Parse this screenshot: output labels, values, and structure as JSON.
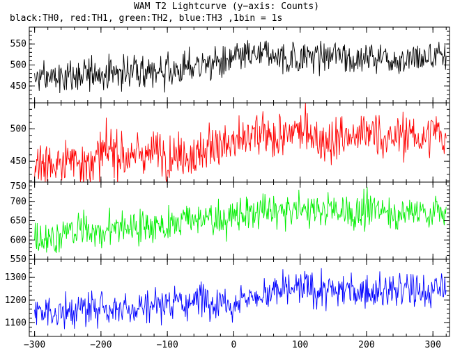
{
  "title": "WAM T2 Lightcurve (y−axis: Counts)",
  "subtitle": "black:TH0, red:TH1, green:TH2, blue:TH3 ,1bin = 1s",
  "chart_data": [
    {
      "type": "line",
      "series": [
        {
          "name": "TH0",
          "color": "#000000",
          "start": 465,
          "end": 520,
          "noise": 28
        }
      ],
      "xlim": [
        -308,
        325
      ],
      "ylim": [
        410,
        590
      ],
      "yticks": [
        450,
        500,
        550
      ],
      "x_range": [
        -300,
        320
      ],
      "bin_seconds": 1
    },
    {
      "type": "line",
      "series": [
        {
          "name": "TH1",
          "color": "#ff0000",
          "start": 445,
          "end": 488,
          "noise": 25
        }
      ],
      "xlim": [
        -308,
        325
      ],
      "ylim": [
        418,
        540
      ],
      "yticks": [
        450,
        500
      ],
      "x_range": [
        -300,
        320
      ],
      "bin_seconds": 1
    },
    {
      "type": "line",
      "series": [
        {
          "name": "TH2",
          "color": "#00ee00",
          "start": 610,
          "end": 675,
          "noise": 32
        }
      ],
      "xlim": [
        -308,
        325
      ],
      "ylim": [
        550,
        750
      ],
      "yticks": [
        550,
        600,
        650,
        700,
        750
      ],
      "x_range": [
        -300,
        320
      ],
      "bin_seconds": 1
    },
    {
      "type": "line",
      "series": [
        {
          "name": "TH3",
          "color": "#0000ff",
          "start": 1140,
          "end": 1240,
          "noise": 55
        }
      ],
      "xlim": [
        -308,
        325
      ],
      "ylim": [
        1040,
        1380
      ],
      "yticks": [
        1100,
        1200,
        1300
      ],
      "x_range": [
        -300,
        320
      ],
      "bin_seconds": 1
    }
  ],
  "xticks": [
    -300,
    -200,
    -100,
    0,
    100,
    200,
    300
  ],
  "xtick_labels": [
    "−300",
    "−200",
    "−100",
    "0",
    "100",
    "200",
    "300"
  ]
}
